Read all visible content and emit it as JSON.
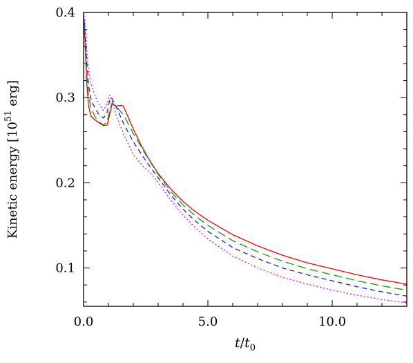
{
  "chart_data": {
    "type": "line",
    "xlabel": {
      "var": "t",
      "slash": "/",
      "sub_var": "t",
      "sub": "0"
    },
    "ylabel": {
      "main": "Kinetic energy [10",
      "sup": "51",
      "unit": " erg]"
    },
    "xlim": [
      0,
      13
    ],
    "ylim": [
      0.055,
      0.4
    ],
    "x_ticks": [
      0,
      5,
      10
    ],
    "x_tick_labels": [
      "0.0",
      "5.0",
      "10.0"
    ],
    "x_minor_step": 1,
    "y_ticks": [
      0.1,
      0.2,
      0.3,
      0.4
    ],
    "y_tick_labels": [
      "0.1",
      "0.2",
      "0.3",
      "0.4"
    ],
    "y_minor_step": 0.02,
    "grid": false,
    "legend": "none",
    "series": [
      {
        "color": "#ff0000",
        "dash": "solid",
        "x": [
          0.0,
          0.05,
          0.12,
          0.2,
          0.3,
          0.45,
          0.6,
          0.8,
          0.95,
          1.05,
          1.15,
          1.3,
          1.5,
          1.6,
          1.75,
          2.0,
          2.3,
          2.6,
          3.0,
          3.5,
          4.0,
          4.5,
          5.0,
          6.0,
          7.0,
          8.0,
          9.0,
          10.0,
          11.0,
          12.0,
          13.0
        ],
        "y": [
          0.4,
          0.37,
          0.32,
          0.29,
          0.278,
          0.274,
          0.271,
          0.267,
          0.268,
          0.28,
          0.293,
          0.29,
          0.291,
          0.29,
          0.28,
          0.263,
          0.245,
          0.229,
          0.211,
          0.193,
          0.178,
          0.166,
          0.156,
          0.139,
          0.126,
          0.115,
          0.106,
          0.099,
          0.092,
          0.086,
          0.081
        ]
      },
      {
        "color": "#0f9b0f",
        "dash": "12,6",
        "x": [
          0.0,
          0.05,
          0.12,
          0.2,
          0.3,
          0.45,
          0.6,
          0.8,
          0.95,
          1.05,
          1.15,
          1.3,
          1.6,
          2.0,
          2.5,
          3.0,
          3.5,
          4.0,
          4.5,
          5.0,
          6.0,
          7.0,
          8.0,
          9.0,
          10.0,
          11.0,
          12.0,
          13.0
        ],
        "y": [
          0.4,
          0.375,
          0.33,
          0.302,
          0.288,
          0.278,
          0.272,
          0.268,
          0.272,
          0.285,
          0.294,
          0.29,
          0.28,
          0.258,
          0.233,
          0.21,
          0.19,
          0.174,
          0.161,
          0.15,
          0.132,
          0.119,
          0.108,
          0.099,
          0.092,
          0.085,
          0.079,
          0.074
        ]
      },
      {
        "color": "#1a1aff",
        "dash": "7,5",
        "x": [
          0.0,
          0.05,
          0.12,
          0.2,
          0.3,
          0.45,
          0.6,
          0.8,
          0.95,
          1.05,
          1.12,
          1.3,
          1.6,
          2.0,
          2.5,
          3.0,
          3.5,
          4.0,
          4.5,
          5.0,
          6.0,
          7.0,
          8.0,
          9.0,
          10.0,
          11.0,
          12.0,
          13.0
        ],
        "y": [
          0.4,
          0.38,
          0.345,
          0.315,
          0.298,
          0.288,
          0.281,
          0.276,
          0.283,
          0.297,
          0.3,
          0.29,
          0.27,
          0.248,
          0.226,
          0.206,
          0.186,
          0.169,
          0.155,
          0.143,
          0.124,
          0.111,
          0.1,
          0.092,
          0.085,
          0.078,
          0.072,
          0.067
        ]
      },
      {
        "color": "#ff00cc",
        "dash": "2,3",
        "x": [
          0.0,
          0.05,
          0.12,
          0.2,
          0.3,
          0.45,
          0.6,
          0.8,
          0.95,
          1.05,
          1.15,
          1.3,
          1.6,
          2.0,
          2.4,
          2.7,
          3.0,
          3.5,
          4.0,
          4.5,
          5.0,
          6.0,
          7.0,
          8.0,
          9.0,
          10.0,
          11.0,
          12.0,
          13.0
        ],
        "y": [
          0.4,
          0.39,
          0.36,
          0.332,
          0.316,
          0.303,
          0.293,
          0.285,
          0.293,
          0.303,
          0.296,
          0.28,
          0.258,
          0.233,
          0.219,
          0.211,
          0.2,
          0.18,
          0.162,
          0.147,
          0.134,
          0.114,
          0.1,
          0.089,
          0.081,
          0.074,
          0.068,
          0.063,
          0.059
        ]
      }
    ]
  }
}
